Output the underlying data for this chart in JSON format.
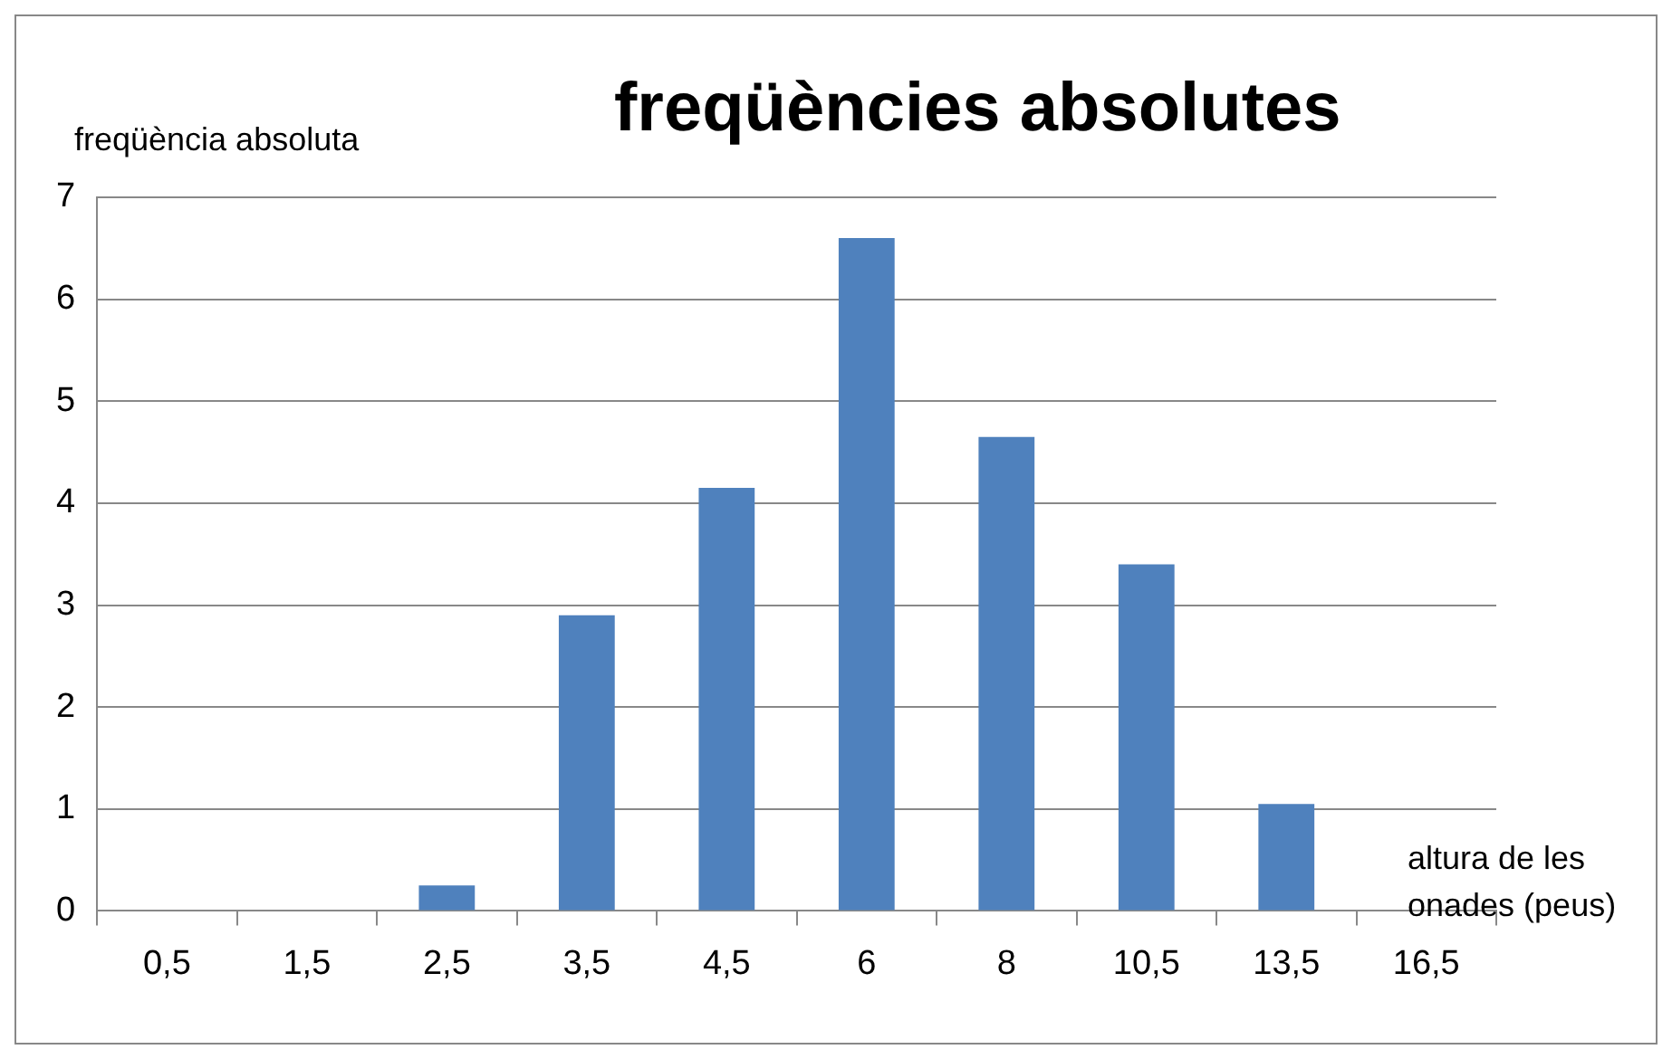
{
  "chart_data": {
    "type": "bar",
    "title": "freqüències absolutes",
    "xlabel": "altura de les onades (peus)",
    "ylabel": "freqüència absoluta",
    "categories": [
      "0,5",
      "1,5",
      "2,5",
      "3,5",
      "4,5",
      "6",
      "8",
      "10,5",
      "13,5",
      "16,5"
    ],
    "values": [
      0,
      0,
      0.25,
      2.9,
      4.15,
      6.6,
      4.65,
      3.4,
      1.05,
      0
    ],
    "color": "#4f81bd",
    "ylim": [
      0,
      7
    ],
    "yticks": [
      0,
      1,
      2,
      3,
      4,
      5,
      6,
      7
    ],
    "grid": "y"
  }
}
